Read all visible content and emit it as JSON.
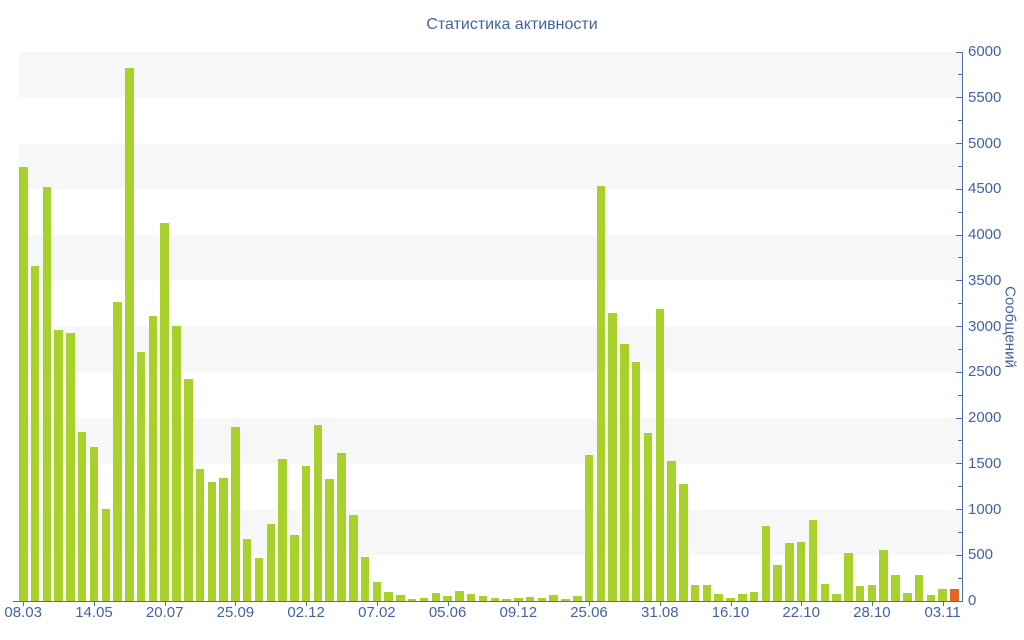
{
  "chart_data": {
    "type": "bar",
    "title": "Статистика активности",
    "xlabel": "",
    "ylabel": "Сообщений",
    "y_min": 0,
    "y_max": 6000,
    "y_major_step": 500,
    "y_minor_step": 250,
    "y_tick_labels": [
      "0",
      "500",
      "1000",
      "1500",
      "2000",
      "2500",
      "3000",
      "3500",
      "4000",
      "4500",
      "5000",
      "5500",
      "6000"
    ],
    "x_tick_labels": [
      "08.03",
      "14.05",
      "20.07",
      "25.09",
      "02.12",
      "07.02",
      "05.06",
      "09.12",
      "25.06",
      "31.08",
      "16.10",
      "22.10",
      "28.10",
      "03.11"
    ],
    "x_label_every": 6,
    "values": [
      4740,
      3660,
      4520,
      2960,
      2930,
      1850,
      1680,
      1010,
      3270,
      5830,
      2720,
      3110,
      4130,
      3010,
      2430,
      1440,
      1300,
      1350,
      1900,
      680,
      470,
      840,
      1550,
      720,
      1480,
      1920,
      1330,
      1620,
      940,
      480,
      210,
      100,
      70,
      25,
      35,
      90,
      50,
      110,
      80,
      55,
      35,
      20,
      35,
      45,
      35,
      65,
      25,
      50,
      1600,
      4540,
      3150,
      2810,
      2610,
      1840,
      3190,
      1530,
      1280,
      175,
      175,
      75,
      35,
      75,
      100,
      825,
      395,
      630,
      650,
      890,
      185,
      75,
      530,
      165,
      170,
      560,
      285,
      85,
      285,
      65,
      130,
      130
    ],
    "bar_color": "#a9d12b",
    "last_bar_color": "#e0662c",
    "band_colors": [
      "#f7f7f7",
      "#ffffff"
    ],
    "axis_color": "#4a6db4",
    "text_color": "#44639e",
    "legend": "none",
    "grid": "horizontal-bands-500",
    "y_axis_side": "right"
  }
}
